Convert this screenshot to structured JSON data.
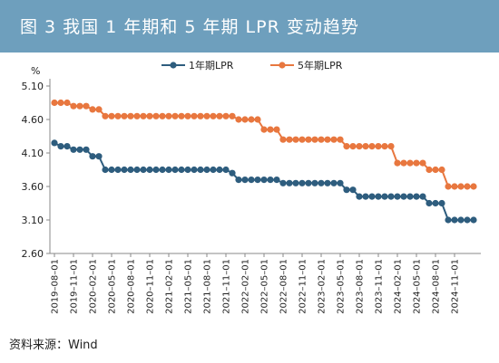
{
  "header": {
    "title": "图 3    我国 1 年期和 5 年期 LPR 变动趋势"
  },
  "colors": {
    "header_bg": "#6e9fbd",
    "series_1y": "#2e5d7e",
    "series_5y": "#e8773f"
  },
  "source": "资料来源：Wind",
  "chart_data": {
    "type": "line",
    "title": "",
    "xlabel": "",
    "ylabel": "%",
    "ylim": [
      2.6,
      5.1
    ],
    "yticks": [
      "5.10",
      "4.60",
      "4.10",
      "3.60",
      "3.10",
      "2.60"
    ],
    "grid": false,
    "legend": "top",
    "x": [
      "2019-08-01",
      "2019-09-01",
      "2019-10-01",
      "2019-11-01",
      "2019-12-01",
      "2020-01-01",
      "2020-02-01",
      "2020-03-01",
      "2020-04-01",
      "2020-05-01",
      "2020-06-01",
      "2020-07-01",
      "2020-08-01",
      "2020-09-01",
      "2020-10-01",
      "2020-11-01",
      "2020-12-01",
      "2021-01-01",
      "2021-02-01",
      "2021-03-01",
      "2021-04-01",
      "2021-05-01",
      "2021-06-01",
      "2021-07-01",
      "2021-08-01",
      "2021-09-01",
      "2021-10-01",
      "2021-11-01",
      "2021-12-01",
      "2022-01-01",
      "2022-02-01",
      "2022-03-01",
      "2022-04-01",
      "2022-05-01",
      "2022-06-01",
      "2022-07-01",
      "2022-08-01",
      "2022-09-01",
      "2022-10-01",
      "2022-11-01",
      "2022-12-01",
      "2023-01-01",
      "2023-02-01",
      "2023-03-01",
      "2023-04-01",
      "2023-05-01",
      "2023-06-01",
      "2023-07-01",
      "2023-08-01",
      "2023-09-01",
      "2023-10-01",
      "2023-11-01",
      "2023-12-01",
      "2024-01-01",
      "2024-02-01",
      "2024-03-01",
      "2024-04-01",
      "2024-05-01",
      "2024-06-01",
      "2024-07-01",
      "2024-08-01",
      "2024-09-01",
      "2024-10-01",
      "2024-11-01",
      "2024-12-01",
      "2025-01-01",
      "2025-02-01"
    ],
    "xticks": [
      "2019–08–01",
      "2019–11–01",
      "2020–02–01",
      "2020–05–01",
      "2020–08–01",
      "2020–11–01",
      "2021–02–01",
      "2021–05–01",
      "2021–08–01",
      "2021–11–01",
      "2022–02–01",
      "2022–05–01",
      "2022–08–01",
      "2022–11–01",
      "2023–02–01",
      "2023–05–01",
      "2023–08–01",
      "2023–11–01",
      "2024–02–01",
      "2024–05–01",
      "2024–08–01",
      "2024–11–01"
    ],
    "series": [
      {
        "name": "1年期LPR",
        "values": [
          4.25,
          4.2,
          4.2,
          4.15,
          4.15,
          4.15,
          4.05,
          4.05,
          3.85,
          3.85,
          3.85,
          3.85,
          3.85,
          3.85,
          3.85,
          3.85,
          3.85,
          3.85,
          3.85,
          3.85,
          3.85,
          3.85,
          3.85,
          3.85,
          3.85,
          3.85,
          3.85,
          3.85,
          3.8,
          3.7,
          3.7,
          3.7,
          3.7,
          3.7,
          3.7,
          3.7,
          3.65,
          3.65,
          3.65,
          3.65,
          3.65,
          3.65,
          3.65,
          3.65,
          3.65,
          3.65,
          3.55,
          3.55,
          3.45,
          3.45,
          3.45,
          3.45,
          3.45,
          3.45,
          3.45,
          3.45,
          3.45,
          3.45,
          3.45,
          3.35,
          3.35,
          3.35,
          3.1,
          3.1,
          3.1,
          3.1,
          3.1
        ]
      },
      {
        "name": "5年期LPR",
        "values": [
          4.85,
          4.85,
          4.85,
          4.8,
          4.8,
          4.8,
          4.75,
          4.75,
          4.65,
          4.65,
          4.65,
          4.65,
          4.65,
          4.65,
          4.65,
          4.65,
          4.65,
          4.65,
          4.65,
          4.65,
          4.65,
          4.65,
          4.65,
          4.65,
          4.65,
          4.65,
          4.65,
          4.65,
          4.65,
          4.6,
          4.6,
          4.6,
          4.6,
          4.45,
          4.45,
          4.45,
          4.3,
          4.3,
          4.3,
          4.3,
          4.3,
          4.3,
          4.3,
          4.3,
          4.3,
          4.3,
          4.2,
          4.2,
          4.2,
          4.2,
          4.2,
          4.2,
          4.2,
          4.2,
          3.95,
          3.95,
          3.95,
          3.95,
          3.95,
          3.85,
          3.85,
          3.85,
          3.6,
          3.6,
          3.6,
          3.6,
          3.6
        ]
      }
    ]
  }
}
